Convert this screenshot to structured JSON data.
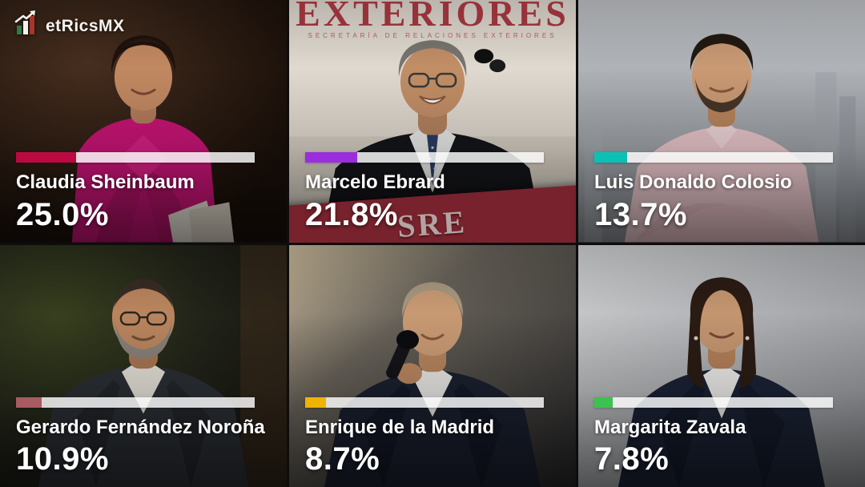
{
  "logo": {
    "text": "etRicsMX",
    "icon": "bar-chart-arrow-icon",
    "icon_bar_colors": [
      "#2e7d46",
      "#f4f2ef",
      "#a8342c"
    ]
  },
  "chart_data": {
    "type": "bar",
    "title": "",
    "xlabel": "",
    "ylabel": "",
    "unit": "%",
    "categories": [
      "Claudia Sheinbaum",
      "Marcelo Ebrard",
      "Luis Donaldo Colosio",
      "Gerardo Fernández Noroña",
      "Enrique de la Madrid",
      "Margarita Zavala"
    ],
    "values": [
      25.0,
      21.8,
      13.7,
      10.9,
      8.7,
      7.8
    ],
    "bar_colors": [
      "#BB0A41",
      "#9A2EDC",
      "#0DC0B4",
      "#A85B61",
      "#F0B400",
      "#3CC24E"
    ],
    "track_color": "rgba(255,255,255,0.82)"
  },
  "candidates": [
    {
      "name": "Claudia Sheinbaum",
      "pct_label": "25.0%",
      "value": 25.0,
      "bar_color": "#BB0A41",
      "photo_desc": "Smiling woman with dark hair pulled back wearing a bright pink blouse with bow, dark blurred indoor background, holding white papers"
    },
    {
      "name": "Marcelo Ebrard",
      "pct_label": "21.8%",
      "value": 21.8,
      "bar_color": "#9A2EDC",
      "photo_desc": "Laughing man with glasses in dark suit and dotted tie standing at a maroon SRE podium, government backdrop behind",
      "photo_text": {
        "backdrop_large": "EXTERIORES",
        "backdrop_small": "SECRETARÍA DE RELACIONES EXTERIORES",
        "podium": "SRE"
      }
    },
    {
      "name": "Luis Donaldo Colosio",
      "pct_label": "13.7%",
      "value": 13.7,
      "bar_color": "#0DC0B4",
      "photo_desc": "Young man with short dark hair and beard in light pink shirt, arms crossed, hazy gray city skyline background"
    },
    {
      "name": "Gerardo Fernández Noroña",
      "pct_label": "10.9%",
      "value": 10.9,
      "bar_color": "#A85B61",
      "photo_desc": "Smiling man with glasses and gray beard wearing a dark jacket over white shirt, dark street background"
    },
    {
      "name": "Enrique de la Madrid",
      "pct_label": "8.7%",
      "value": 8.7,
      "bar_color": "#F0B400",
      "photo_desc": "Man with light hair in dark suit speaking into a handheld microphone, dark indoor background with tan wall"
    },
    {
      "name": "Margarita Zavala",
      "pct_label": "7.8%",
      "value": 7.8,
      "bar_color": "#3CC24E",
      "photo_desc": "Smiling woman with shoulder-length dark hair in navy suit over white top, light gray studio background"
    }
  ]
}
